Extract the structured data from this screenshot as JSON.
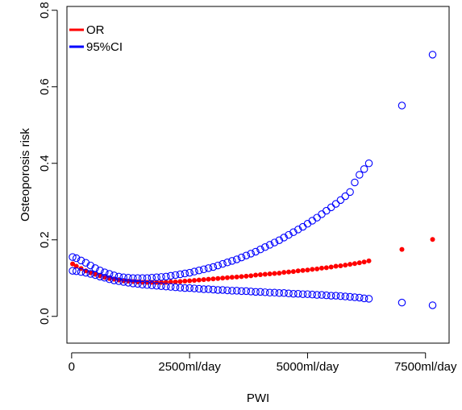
{
  "chart_data": {
    "type": "scatter",
    "title": "",
    "xlabel": "PWI",
    "ylabel": "Osteoporosis risk",
    "xlim": [
      -100,
      8000
    ],
    "ylim": [
      -0.07,
      0.81
    ],
    "x_ticks": [
      {
        "value": 0,
        "label": "0"
      },
      {
        "value": 2500,
        "label": "2500ml/day"
      },
      {
        "value": 5000,
        "label": "5000ml/day"
      },
      {
        "value": 7500,
        "label": "7500ml/day"
      }
    ],
    "y_ticks": [
      {
        "value": 0.0,
        "label": "0.0"
      },
      {
        "value": 0.2,
        "label": "0.2"
      },
      {
        "value": 0.4,
        "label": "0.4"
      },
      {
        "value": 0.6,
        "label": "0.6"
      },
      {
        "value": 0.8,
        "label": "0.8"
      }
    ],
    "legend": {
      "position": "top-left",
      "entries": [
        "OR",
        "95%CI"
      ]
    },
    "colors": {
      "or": "#ff0000",
      "ci": "#0000ff"
    },
    "series": [
      {
        "name": "OR",
        "marker": "filled-dot",
        "color": "#ff0000",
        "x": [
          20,
          100,
          200,
          300,
          400,
          500,
          600,
          700,
          800,
          900,
          1000,
          1100,
          1200,
          1300,
          1400,
          1500,
          1600,
          1700,
          1800,
          1900,
          2000,
          2100,
          2200,
          2300,
          2400,
          2500,
          2600,
          2700,
          2800,
          2900,
          3000,
          3100,
          3200,
          3300,
          3400,
          3500,
          3600,
          3700,
          3800,
          3900,
          4000,
          4100,
          4200,
          4300,
          4400,
          4500,
          4600,
          4700,
          4800,
          4900,
          5000,
          5100,
          5200,
          5300,
          5400,
          5500,
          5600,
          5700,
          5800,
          5900,
          6000,
          6100,
          6200,
          6300,
          7000,
          7650
        ],
        "y": [
          0.137,
          0.131,
          0.125,
          0.119,
          0.114,
          0.11,
          0.106,
          0.102,
          0.099,
          0.097,
          0.095,
          0.093,
          0.092,
          0.091,
          0.09,
          0.089,
          0.089,
          0.089,
          0.089,
          0.089,
          0.089,
          0.09,
          0.09,
          0.091,
          0.092,
          0.093,
          0.094,
          0.095,
          0.096,
          0.097,
          0.098,
          0.099,
          0.1,
          0.101,
          0.102,
          0.103,
          0.104,
          0.105,
          0.106,
          0.108,
          0.109,
          0.11,
          0.111,
          0.112,
          0.113,
          0.115,
          0.116,
          0.117,
          0.119,
          0.12,
          0.121,
          0.123,
          0.124,
          0.126,
          0.127,
          0.129,
          0.131,
          0.132,
          0.134,
          0.136,
          0.138,
          0.14,
          0.142,
          0.145,
          0.175,
          0.201
        ]
      },
      {
        "name": "95%CI",
        "marker": "open-circle",
        "color": "#0000ff",
        "bound": "upper",
        "x": [
          20,
          100,
          200,
          300,
          400,
          500,
          600,
          700,
          800,
          900,
          1000,
          1100,
          1200,
          1300,
          1400,
          1500,
          1600,
          1700,
          1800,
          1900,
          2000,
          2100,
          2200,
          2300,
          2400,
          2500,
          2600,
          2700,
          2800,
          2900,
          3000,
          3100,
          3200,
          3300,
          3400,
          3500,
          3600,
          3700,
          3800,
          3900,
          4000,
          4100,
          4200,
          4300,
          4400,
          4500,
          4600,
          4700,
          4800,
          4900,
          5000,
          5100,
          5200,
          5300,
          5400,
          5500,
          5600,
          5700,
          5800,
          5900,
          6000,
          6100,
          6200,
          6300,
          7000,
          7650
        ],
        "y": [
          0.155,
          0.152,
          0.146,
          0.14,
          0.133,
          0.126,
          0.12,
          0.115,
          0.111,
          0.107,
          0.104,
          0.102,
          0.101,
          0.1,
          0.1,
          0.1,
          0.1,
          0.101,
          0.102,
          0.103,
          0.104,
          0.106,
          0.108,
          0.11,
          0.112,
          0.114,
          0.117,
          0.12,
          0.123,
          0.126,
          0.129,
          0.133,
          0.137,
          0.141,
          0.145,
          0.149,
          0.154,
          0.159,
          0.164,
          0.169,
          0.175,
          0.181,
          0.187,
          0.193,
          0.199,
          0.206,
          0.213,
          0.22,
          0.227,
          0.234,
          0.242,
          0.25,
          0.258,
          0.267,
          0.276,
          0.285,
          0.294,
          0.304,
          0.314,
          0.325,
          0.35,
          0.37,
          0.385,
          0.4,
          0.551,
          0.684
        ]
      },
      {
        "name": "95%CI",
        "marker": "open-circle",
        "color": "#0000ff",
        "bound": "lower",
        "x": [
          20,
          100,
          200,
          300,
          400,
          500,
          600,
          700,
          800,
          900,
          1000,
          1100,
          1200,
          1300,
          1400,
          1500,
          1600,
          1700,
          1800,
          1900,
          2000,
          2100,
          2200,
          2300,
          2400,
          2500,
          2600,
          2700,
          2800,
          2900,
          3000,
          3100,
          3200,
          3300,
          3400,
          3500,
          3600,
          3700,
          3800,
          3900,
          4000,
          4100,
          4200,
          4300,
          4400,
          4500,
          4600,
          4700,
          4800,
          4900,
          5000,
          5100,
          5200,
          5300,
          5400,
          5500,
          5600,
          5700,
          5800,
          5900,
          6000,
          6100,
          6200,
          6300,
          7000,
          7650
        ],
        "y": [
          0.119,
          0.118,
          0.116,
          0.114,
          0.111,
          0.108,
          0.104,
          0.101,
          0.097,
          0.094,
          0.092,
          0.09,
          0.088,
          0.086,
          0.085,
          0.083,
          0.082,
          0.081,
          0.08,
          0.079,
          0.078,
          0.077,
          0.076,
          0.075,
          0.074,
          0.074,
          0.073,
          0.072,
          0.071,
          0.071,
          0.07,
          0.069,
          0.069,
          0.068,
          0.067,
          0.067,
          0.066,
          0.066,
          0.065,
          0.064,
          0.064,
          0.063,
          0.062,
          0.062,
          0.061,
          0.061,
          0.06,
          0.059,
          0.059,
          0.058,
          0.058,
          0.057,
          0.056,
          0.056,
          0.055,
          0.054,
          0.054,
          0.053,
          0.052,
          0.051,
          0.05,
          0.049,
          0.047,
          0.046,
          0.036,
          0.029
        ]
      }
    ]
  }
}
